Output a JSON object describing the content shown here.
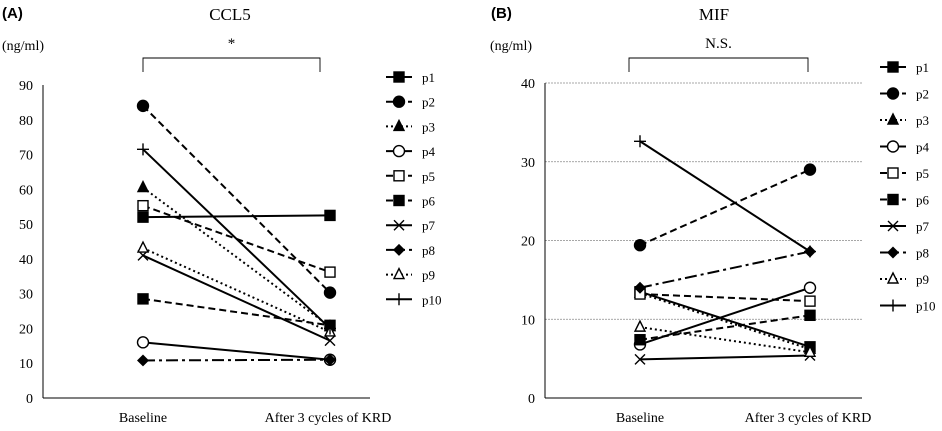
{
  "chart_data": [
    {
      "panel": "(A)",
      "title": "CCL5",
      "type": "line",
      "ylabel": "(ng/ml)",
      "ylim": [
        0,
        90
      ],
      "yticks": [
        0,
        10,
        20,
        30,
        40,
        50,
        60,
        70,
        80,
        90
      ],
      "grid": false,
      "categories": [
        "Baseline",
        "After 3 cycles of KRD"
      ],
      "significance": "*",
      "legend_position": "right",
      "series": [
        {
          "name": "p1",
          "values": [
            52.0,
            52.5
          ]
        },
        {
          "name": "p2",
          "values": [
            84.0,
            30.3
          ]
        },
        {
          "name": "p3",
          "values": [
            60.5,
            20.5
          ]
        },
        {
          "name": "p4",
          "values": [
            16.0,
            11.0
          ]
        },
        {
          "name": "p5",
          "values": [
            55.3,
            36.2
          ]
        },
        {
          "name": "p6",
          "values": [
            28.5,
            20.9
          ]
        },
        {
          "name": "p7",
          "values": [
            41.0,
            16.5
          ]
        },
        {
          "name": "p8",
          "values": [
            10.8,
            11.0
          ]
        },
        {
          "name": "p9",
          "values": [
            43.1,
            19.0
          ]
        },
        {
          "name": "p10",
          "values": [
            71.5,
            20.0
          ]
        }
      ]
    },
    {
      "panel": "(B)",
      "title": "MIF",
      "type": "line",
      "ylabel": "(ng/ml)",
      "ylim": [
        0,
        40
      ],
      "yticks": [
        0,
        10,
        20,
        30,
        40
      ],
      "grid": true,
      "categories": [
        "Baseline",
        "After 3 cycles of KRD"
      ],
      "significance": "N.S.",
      "legend_position": "right",
      "series": [
        {
          "name": "p1",
          "values": [
            13.5,
            6.5
          ]
        },
        {
          "name": "p2",
          "values": [
            19.4,
            29.0
          ]
        },
        {
          "name": "p3",
          "values": [
            13.3,
            6.2
          ]
        },
        {
          "name": "p4",
          "values": [
            6.8,
            14.0
          ]
        },
        {
          "name": "p5",
          "values": [
            13.2,
            12.3
          ]
        },
        {
          "name": "p6",
          "values": [
            7.4,
            10.5
          ]
        },
        {
          "name": "p7",
          "values": [
            4.9,
            5.4
          ]
        },
        {
          "name": "p8",
          "values": [
            14.0,
            18.6
          ]
        },
        {
          "name": "p9",
          "values": [
            9.0,
            5.8
          ]
        },
        {
          "name": "p10",
          "values": [
            32.6,
            18.6
          ]
        }
      ]
    }
  ],
  "styles": {
    "p1": {
      "dash": "solid",
      "marker": "square-filled",
      "color": "#000000"
    },
    "p2": {
      "dash": "dash",
      "marker": "circle-filled",
      "color": "#000000"
    },
    "p3": {
      "dash": "dot",
      "marker": "triangle-filled",
      "color": "#000000"
    },
    "p4": {
      "dash": "solid",
      "marker": "circle-open",
      "color": "#000000"
    },
    "p5": {
      "dash": "dash",
      "marker": "square-open",
      "color": "#000000"
    },
    "p6": {
      "dash": "dash",
      "marker": "square-filled",
      "color": "#000000"
    },
    "p7": {
      "dash": "solid",
      "marker": "cross",
      "color": "#000000"
    },
    "p8": {
      "dash": "dash-dot",
      "marker": "diamond-filled",
      "color": "#000000"
    },
    "p9": {
      "dash": "dot",
      "marker": "triangle-open",
      "color": "#000000"
    },
    "p10": {
      "dash": "solid",
      "marker": "plus",
      "color": "#000000"
    }
  }
}
